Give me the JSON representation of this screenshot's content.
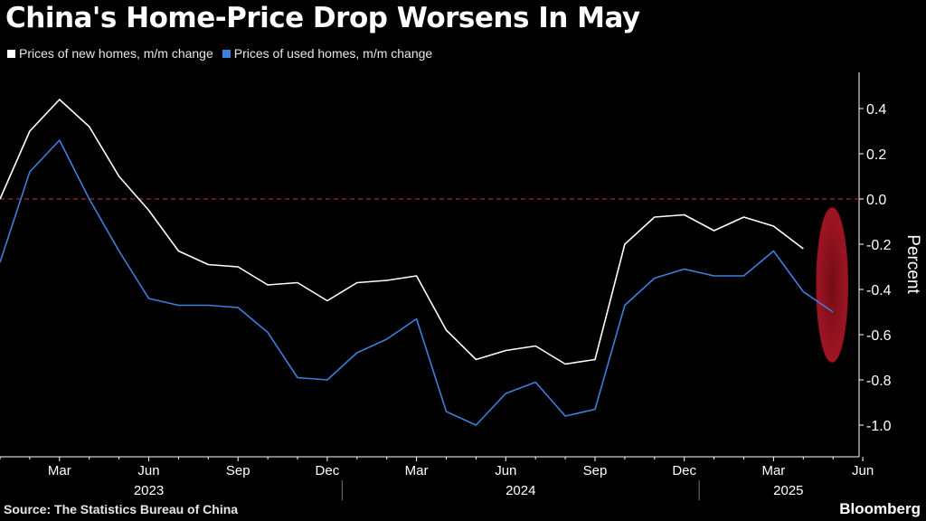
{
  "title": "China's Home-Price Drop Worsens In May",
  "legend": [
    {
      "label": "Prices of new homes, m/m change",
      "color": "#ffffff"
    },
    {
      "label": "Prices of used homes, m/m change",
      "color": "#3f7fdc"
    }
  ],
  "source": "Source: The Statistics Bureau of China",
  "brand": "Bloomberg",
  "chart_data": {
    "type": "line",
    "x": [
      "2023-01",
      "2023-02",
      "2023-03",
      "2023-04",
      "2023-05",
      "2023-06",
      "2023-07",
      "2023-08",
      "2023-09",
      "2023-10",
      "2023-11",
      "2023-12",
      "2024-01",
      "2024-02",
      "2024-03",
      "2024-04",
      "2024-05",
      "2024-06",
      "2024-07",
      "2024-08",
      "2024-09",
      "2024-10",
      "2024-11",
      "2024-12",
      "2025-01",
      "2025-02",
      "2025-03",
      "2025-04",
      "2025-05"
    ],
    "series": [
      {
        "name": "Prices of new homes, m/m change",
        "color": "#ffffff",
        "values": [
          0.0,
          0.3,
          0.44,
          0.32,
          0.1,
          -0.05,
          -0.23,
          -0.29,
          -0.3,
          -0.38,
          -0.37,
          -0.45,
          -0.37,
          -0.36,
          -0.34,
          -0.58,
          -0.71,
          -0.67,
          -0.65,
          -0.73,
          -0.71,
          -0.2,
          -0.08,
          -0.07,
          -0.14,
          -0.08,
          -0.12,
          -0.22,
          null
        ]
      },
      {
        "name": "Prices of used homes, m/m change",
        "color": "#3f7fdc",
        "values": [
          -0.28,
          0.12,
          0.26,
          0.0,
          -0.23,
          -0.44,
          -0.47,
          -0.47,
          -0.48,
          -0.59,
          -0.79,
          -0.8,
          -0.68,
          -0.62,
          -0.53,
          -0.94,
          -1.0,
          -0.86,
          -0.81,
          -0.96,
          -0.93,
          -0.47,
          -0.35,
          -0.31,
          -0.34,
          -0.34,
          -0.23,
          -0.41,
          -0.5
        ]
      }
    ],
    "x_tick_labels": [
      "Mar",
      "Jun",
      "Sep",
      "Dec",
      "Mar",
      "Jun",
      "Sep",
      "Dec",
      "Mar",
      "Jun"
    ],
    "x_group_labels": [
      "2023",
      "2024",
      "2025"
    ],
    "y_ticks": [
      0.4,
      0.2,
      0.0,
      -0.2,
      -0.4,
      -0.6,
      -0.8,
      -1.0
    ],
    "y_tick_labels": [
      "0.4",
      "0.2",
      "0.0",
      "-0.2",
      "-0.4",
      "-0.6",
      "-0.8",
      "-1.0"
    ],
    "ylabel": "Percent",
    "ylim": [
      -1.1,
      0.55
    ],
    "zero_line": {
      "value": 0.0,
      "color": "#a32a2a",
      "style": "dashed"
    },
    "highlight": {
      "shape": "ellipse",
      "x": "2025-05",
      "y_range": [
        -0.72,
        -0.04
      ],
      "color": "#a3141f"
    },
    "grid": false,
    "legend_position": "top-left"
  }
}
